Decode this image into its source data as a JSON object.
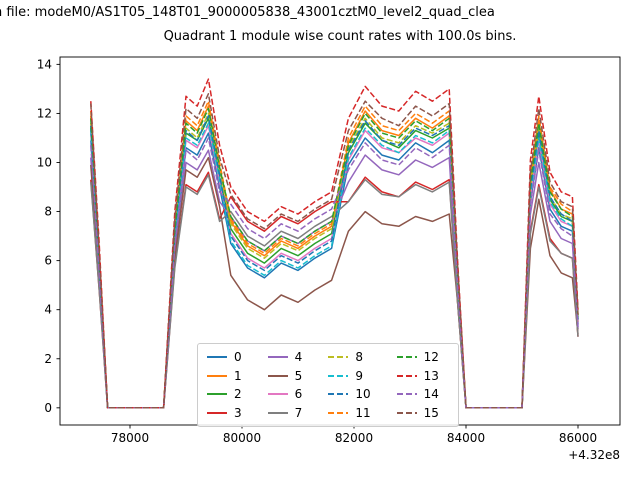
{
  "figure": {
    "title_file": "n file: modeM0/AS1T05_148T01_9000005838_43001cztM0_level2_quad_clea",
    "title_main": "Quadrant 1 module wise count rates with 100.0s bins."
  },
  "chart_data": {
    "type": "line",
    "title": "Quadrant 1 module wise count rates with 100.0s bins.",
    "subtitle_file": "n file: modeM0/AS1T05_148T01_9000005838_43001cztM0_level2_quad_clea",
    "xlabel": "",
    "ylabel": "",
    "x_offset_label": "+4.32e8",
    "xlim": [
      76750,
      86750
    ],
    "ylim": [
      -0.7,
      14.3
    ],
    "xticks": [
      78000,
      80000,
      82000,
      84000,
      86000
    ],
    "yticks": [
      0,
      2,
      4,
      6,
      8,
      10,
      12,
      14
    ],
    "grid": false,
    "legend_position": "lower center, 4 columns",
    "x": [
      77300,
      77450,
      77600,
      78000,
      78600,
      78800,
      79000,
      79200,
      79400,
      79600,
      79800,
      80100,
      80400,
      80700,
      81000,
      81300,
      81600,
      81900,
      82200,
      82500,
      82800,
      83100,
      83400,
      83700,
      83850,
      84000,
      84500,
      85000,
      85150,
      85300,
      85500,
      85700,
      85900,
      86000
    ],
    "series": [
      {
        "name": "0",
        "color": "#1f77b4",
        "dashed": false,
        "values": [
          10.9,
          5.6,
          0,
          0,
          0,
          6.7,
          10.6,
          10.3,
          11.2,
          9.0,
          6.7,
          5.7,
          5.3,
          5.9,
          5.6,
          6.1,
          6.5,
          9.9,
          11.0,
          10.3,
          10.1,
          10.8,
          10.4,
          10.9,
          5.0,
          0,
          0,
          0,
          8.4,
          10.6,
          8.1,
          7.4,
          7.2,
          3.4
        ]
      },
      {
        "name": "1",
        "color": "#ff7f0e",
        "dashed": false,
        "values": [
          11.9,
          6.2,
          0,
          0,
          0,
          7.4,
          11.7,
          11.3,
          12.3,
          9.8,
          7.6,
          6.6,
          6.2,
          6.8,
          6.5,
          7.0,
          7.4,
          10.8,
          12.1,
          11.3,
          11.1,
          11.8,
          11.4,
          11.9,
          5.5,
          0,
          0,
          0,
          9.2,
          11.7,
          8.9,
          8.1,
          7.9,
          3.7
        ]
      },
      {
        "name": "2",
        "color": "#2ca02c",
        "dashed": false,
        "values": [
          11.4,
          5.9,
          0,
          0,
          0,
          7.1,
          11.2,
          10.9,
          11.8,
          9.4,
          7.3,
          6.3,
          5.9,
          6.5,
          6.2,
          6.7,
          7.1,
          10.4,
          11.6,
          10.9,
          10.6,
          11.3,
          11.0,
          11.4,
          5.3,
          0,
          0,
          0,
          8.9,
          11.2,
          8.5,
          7.8,
          7.6,
          3.5
        ]
      },
      {
        "name": "3",
        "color": "#d62728",
        "dashed": false,
        "values": [
          9.3,
          4.8,
          0,
          0,
          0,
          5.8,
          9.1,
          8.8,
          9.6,
          7.7,
          8.6,
          7.6,
          7.2,
          7.8,
          7.5,
          8.0,
          8.4,
          8.4,
          9.4,
          8.8,
          8.6,
          9.2,
          8.9,
          9.3,
          4.3,
          0,
          0,
          0,
          7.2,
          9.1,
          6.9,
          6.3,
          6.1,
          2.9
        ]
      },
      {
        "name": "4",
        "color": "#9467bd",
        "dashed": false,
        "values": [
          10.2,
          5.3,
          0,
          0,
          0,
          6.3,
          10.0,
          9.7,
          10.5,
          8.4,
          7.8,
          6.8,
          6.4,
          7.0,
          6.7,
          7.2,
          7.6,
          9.2,
          10.3,
          9.7,
          9.5,
          10.1,
          9.8,
          10.2,
          4.7,
          0,
          0,
          0,
          7.9,
          10.0,
          7.6,
          6.9,
          6.7,
          3.2
        ]
      },
      {
        "name": "5",
        "color": "#8c564b",
        "dashed": false,
        "values": [
          9.9,
          5.1,
          0,
          0,
          0,
          6.1,
          9.7,
          9.4,
          10.2,
          8.2,
          5.4,
          4.4,
          4.0,
          4.6,
          4.3,
          4.8,
          5.2,
          7.2,
          8.0,
          7.5,
          7.4,
          7.8,
          7.6,
          7.9,
          4.3,
          0,
          0,
          0,
          6.5,
          8.5,
          6.2,
          5.5,
          5.3,
          3.0
        ]
      },
      {
        "name": "6",
        "color": "#e377c2",
        "dashed": false,
        "values": [
          11.2,
          5.8,
          0,
          0,
          0,
          6.9,
          10.9,
          10.6,
          11.5,
          9.2,
          7.1,
          6.1,
          5.7,
          6.3,
          6.0,
          6.5,
          6.9,
          10.1,
          11.3,
          10.6,
          10.4,
          11.0,
          10.7,
          11.2,
          5.2,
          0,
          0,
          0,
          8.6,
          10.9,
          8.3,
          7.6,
          7.4,
          3.5
        ]
      },
      {
        "name": "7",
        "color": "#7f7f7f",
        "dashed": false,
        "values": [
          9.2,
          4.8,
          0,
          0,
          0,
          5.7,
          9.0,
          8.7,
          9.5,
          7.6,
          8.0,
          7.0,
          6.6,
          7.2,
          6.9,
          7.4,
          7.8,
          8.4,
          9.3,
          8.7,
          8.6,
          9.1,
          8.8,
          9.2,
          4.3,
          0,
          0,
          0,
          7.1,
          9.0,
          6.8,
          6.3,
          6.1,
          2.9
        ]
      },
      {
        "name": "8",
        "color": "#bcbd22",
        "dashed": true,
        "values": [
          11.6,
          6.0,
          0,
          0,
          0,
          7.2,
          11.4,
          11.0,
          12.0,
          9.6,
          7.5,
          6.5,
          6.1,
          6.7,
          6.4,
          6.9,
          7.3,
          10.6,
          11.8,
          11.0,
          10.8,
          11.5,
          11.2,
          11.6,
          5.4,
          0,
          0,
          0,
          9.0,
          11.4,
          8.6,
          7.9,
          7.7,
          3.6
        ]
      },
      {
        "name": "9",
        "color": "#17becf",
        "dashed": true,
        "values": [
          11.3,
          5.8,
          0,
          0,
          0,
          7.0,
          11.0,
          10.7,
          11.6,
          9.3,
          6.8,
          5.8,
          5.4,
          6.0,
          5.7,
          6.2,
          6.6,
          10.2,
          11.4,
          10.7,
          10.4,
          11.1,
          10.8,
          11.3,
          5.2,
          0,
          0,
          0,
          8.7,
          11.0,
          8.4,
          7.7,
          7.4,
          3.5
        ]
      },
      {
        "name": "10",
        "color": "#1f77b4",
        "dashed": true,
        "values": [
          11.5,
          6.0,
          0,
          0,
          0,
          7.1,
          11.3,
          10.9,
          11.9,
          9.5,
          7.0,
          6.0,
          5.6,
          6.2,
          5.9,
          6.4,
          6.8,
          10.5,
          11.7,
          10.9,
          10.7,
          11.4,
          11.1,
          11.5,
          5.4,
          0,
          0,
          0,
          8.9,
          11.3,
          8.6,
          7.9,
          7.6,
          3.6
        ]
      },
      {
        "name": "11",
        "color": "#ff7f0e",
        "dashed": true,
        "values": [
          12.1,
          6.3,
          0,
          0,
          0,
          7.5,
          11.9,
          11.5,
          12.5,
          10.0,
          7.7,
          6.7,
          6.3,
          6.9,
          6.6,
          7.1,
          7.5,
          11.0,
          12.3,
          11.5,
          11.3,
          12.0,
          11.6,
          12.1,
          5.6,
          0,
          0,
          0,
          9.4,
          11.9,
          9.0,
          8.3,
          8.0,
          3.8
        ]
      },
      {
        "name": "12",
        "color": "#2ca02c",
        "dashed": true,
        "values": [
          11.8,
          6.1,
          0,
          0,
          0,
          7.3,
          11.6,
          11.2,
          12.2,
          9.8,
          7.8,
          6.8,
          6.4,
          7.0,
          6.7,
          7.2,
          7.6,
          10.7,
          12.0,
          11.2,
          11.0,
          11.7,
          11.3,
          11.8,
          5.5,
          0,
          0,
          0,
          9.2,
          11.6,
          8.8,
          8.1,
          7.8,
          3.7
        ]
      },
      {
        "name": "13",
        "color": "#d62728",
        "dashed": true,
        "values": [
          12.5,
          6.7,
          0,
          0,
          0,
          8.0,
          12.7,
          12.3,
          13.4,
          10.7,
          9.0,
          8.0,
          7.6,
          8.2,
          7.9,
          8.4,
          8.8,
          11.8,
          13.1,
          12.3,
          12.1,
          12.9,
          12.5,
          13.0,
          6.0,
          0,
          0,
          0,
          10.1,
          12.7,
          9.6,
          8.8,
          8.6,
          4.0
        ]
      },
      {
        "name": "14",
        "color": "#9467bd",
        "dashed": true,
        "values": [
          10.7,
          5.5,
          0,
          0,
          0,
          6.6,
          10.5,
          10.1,
          11.0,
          8.8,
          8.3,
          7.3,
          6.9,
          7.5,
          7.2,
          7.7,
          8.1,
          9.7,
          10.8,
          10.1,
          9.9,
          10.6,
          10.2,
          10.7,
          5.0,
          0,
          0,
          0,
          8.3,
          10.5,
          7.9,
          7.3,
          7.0,
          3.3
        ]
      },
      {
        "name": "15",
        "color": "#8c564b",
        "dashed": true,
        "values": [
          12.4,
          6.4,
          0,
          0,
          0,
          7.7,
          12.2,
          11.8,
          12.8,
          10.2,
          8.7,
          7.7,
          7.3,
          7.9,
          7.6,
          8.1,
          8.5,
          11.3,
          12.5,
          11.8,
          11.5,
          12.3,
          11.9,
          12.4,
          5.8,
          0,
          0,
          0,
          9.6,
          12.2,
          9.2,
          8.4,
          8.2,
          3.8
        ]
      }
    ]
  }
}
